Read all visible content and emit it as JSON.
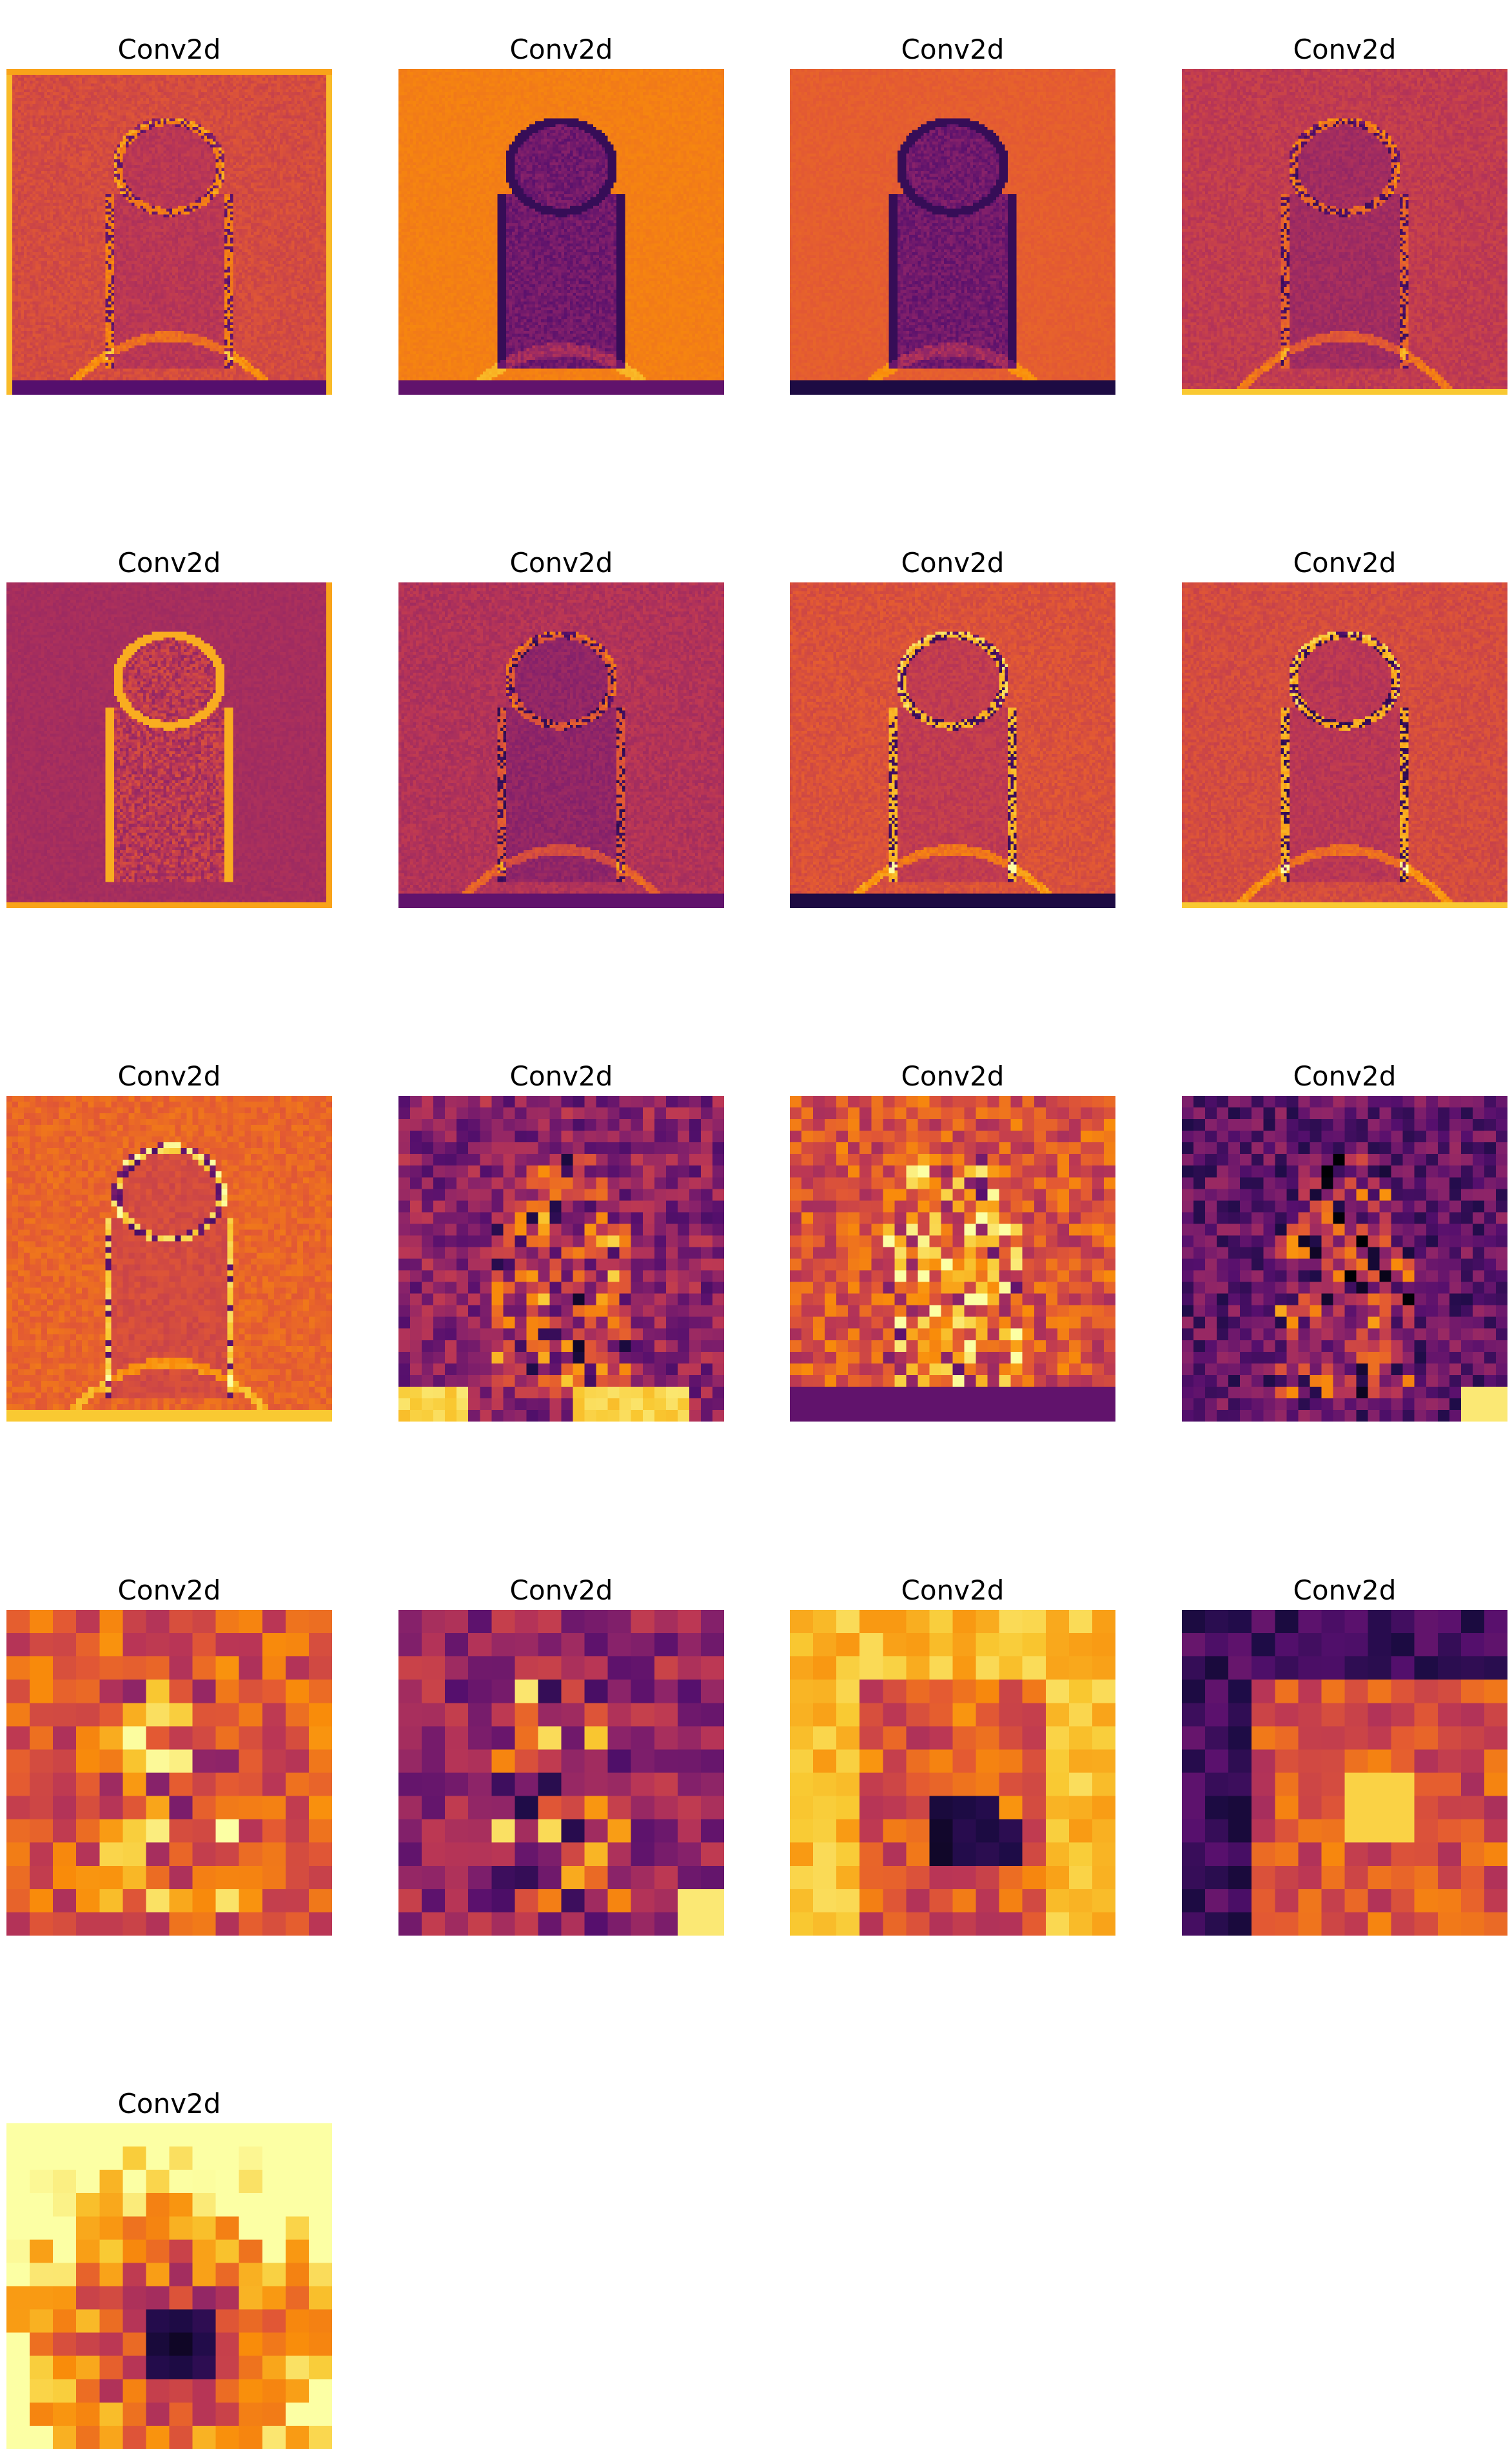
{
  "chart_data": {
    "type": "heatmap",
    "colormap": "inferno",
    "title": "",
    "xlabel": "",
    "ylabel": "",
    "axes_visible": false,
    "layout": {
      "rows": 5,
      "cols": 4
    },
    "panels": [
      {
        "title": "Conv2d",
        "resolution": 112,
        "style": "edge",
        "seed": 1,
        "bg": 0.58,
        "border": "yellow-bottom-purple"
      },
      {
        "title": "Conv2d",
        "resolution": 112,
        "style": "smooth-dark-dog",
        "seed": 2,
        "bg": 0.72,
        "border": "purple-bottom"
      },
      {
        "title": "Conv2d",
        "resolution": 112,
        "style": "smooth-dark-dog",
        "seed": 3,
        "bg": 0.64,
        "border": "dark-bottom"
      },
      {
        "title": "Conv2d",
        "resolution": 112,
        "style": "edge",
        "seed": 4,
        "bg": 0.52,
        "border": "yellow-bottom"
      },
      {
        "title": "Conv2d",
        "resolution": 112,
        "style": "purple-bright-dog",
        "seed": 5,
        "bg": 0.45,
        "border": "yellow-right"
      },
      {
        "title": "Conv2d",
        "resolution": 112,
        "style": "edge",
        "seed": 6,
        "bg": 0.48,
        "border": "purple-bottom"
      },
      {
        "title": "Conv2d",
        "resolution": 112,
        "style": "edge-bright",
        "seed": 7,
        "bg": 0.6,
        "border": "dark-bottom"
      },
      {
        "title": "Conv2d",
        "resolution": 112,
        "style": "edge-bright",
        "seed": 8,
        "bg": 0.58,
        "border": "yellow-bottom"
      },
      {
        "title": "Conv2d",
        "resolution": 56,
        "style": "edge-bright",
        "seed": 9,
        "bg": 0.66,
        "border": "yellow-bottom"
      },
      {
        "title": "Conv2d",
        "resolution": 28,
        "style": "coarse-dark",
        "seed": 10,
        "bg": 0.38,
        "border": "bright-bottom"
      },
      {
        "title": "Conv2d",
        "resolution": 28,
        "style": "coarse-mid",
        "seed": 11,
        "bg": 0.6,
        "border": "purple-bottom"
      },
      {
        "title": "Conv2d",
        "resolution": 28,
        "style": "coarse-darker",
        "seed": 12,
        "bg": 0.28,
        "border": "bright-corner"
      },
      {
        "title": "Conv2d",
        "resolution": 14,
        "style": "coarse-mid",
        "seed": 13,
        "bg": 0.62,
        "border": "none"
      },
      {
        "title": "Conv2d",
        "resolution": 14,
        "style": "coarse-dark",
        "seed": 14,
        "bg": 0.4,
        "border": "bright-corner"
      },
      {
        "title": "Conv2d",
        "resolution": 14,
        "style": "bright-frame",
        "seed": 15,
        "bg": 0.78,
        "border": "none"
      },
      {
        "title": "Conv2d",
        "resolution": 14,
        "style": "dark-frame",
        "seed": 16,
        "bg": 0.42,
        "border": "none"
      },
      {
        "title": "Conv2d",
        "resolution": 14,
        "style": "blob-center",
        "seed": 17,
        "bg": 0.68,
        "border": "none"
      }
    ]
  }
}
